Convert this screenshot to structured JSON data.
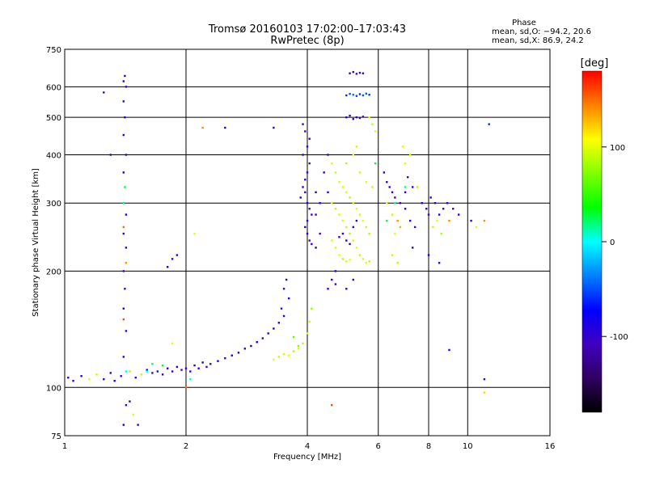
{
  "chart_data": {
    "type": "scatter",
    "title": "Tromsø 20160103 17:02:00–17:03:43",
    "subtitle": "RwPretec (8p)",
    "xlabel": "Frequency [MHz]",
    "ylabel": "Stationary phase Virtual Height [km]",
    "x_scale": "log",
    "y_scale": "log",
    "xlim": [
      1,
      16
    ],
    "ylim": [
      75,
      750
    ],
    "x_ticks": [
      1,
      2,
      4,
      6,
      8,
      10,
      16
    ],
    "y_ticks": [
      75,
      100,
      200,
      300,
      400,
      500,
      600,
      750
    ],
    "grid": true,
    "stats": {
      "heading": "Phase",
      "o_line": "mean, sd,O: −94.2, 20.6",
      "x_line": "mean, sd,X:  86.9, 24.2"
    },
    "colorbar": {
      "label": "[deg]",
      "range": [
        -180,
        180
      ],
      "ticks": [
        100,
        0,
        -100
      ],
      "colors": [
        "#ff0000",
        "#ff8000",
        "#ffff00",
        "#80ff00",
        "#00ff00",
        "#00ffff",
        "#0080ff",
        "#0000ff",
        "#4000c0",
        "#300060",
        "#000000"
      ]
    },
    "series": [
      {
        "points": [
          [
            1.02,
            106,
            -110
          ],
          [
            1.05,
            104,
            -105
          ],
          [
            1.1,
            107,
            -95
          ],
          [
            1.15,
            105,
            100
          ],
          [
            1.2,
            108,
            90
          ],
          [
            1.25,
            105,
            -100
          ],
          [
            1.3,
            109,
            -120
          ],
          [
            1.33,
            104,
            -90
          ],
          [
            1.38,
            107,
            -110
          ],
          [
            1.45,
            110,
            85
          ],
          [
            1.5,
            106,
            -100
          ],
          [
            1.55,
            108,
            90
          ],
          [
            1.6,
            111,
            -95
          ],
          [
            1.65,
            109,
            -110
          ],
          [
            1.7,
            110,
            -100
          ],
          [
            1.75,
            108,
            -120
          ],
          [
            1.8,
            112,
            -95
          ],
          [
            1.85,
            110,
            -105
          ],
          [
            1.9,
            113,
            -90
          ],
          [
            1.95,
            111,
            -110
          ],
          [
            2.0,
            112,
            -100
          ],
          [
            2.05,
            110,
            -115
          ],
          [
            2.1,
            114,
            -95
          ],
          [
            2.15,
            112,
            -100
          ],
          [
            2.2,
            116,
            -85
          ],
          [
            2.25,
            113,
            -105
          ],
          [
            2.3,
            115,
            -110
          ],
          [
            2.4,
            117,
            -90
          ],
          [
            2.5,
            119,
            -100
          ],
          [
            2.6,
            121,
            -80
          ],
          [
            2.7,
            123,
            -95
          ],
          [
            2.8,
            126,
            -105
          ],
          [
            2.9,
            128,
            -90
          ],
          [
            3.0,
            131,
            -85
          ],
          [
            3.1,
            134,
            -100
          ],
          [
            3.2,
            138,
            -95
          ],
          [
            3.3,
            142,
            -80
          ],
          [
            3.4,
            147,
            -90
          ],
          [
            3.5,
            153,
            -100
          ],
          [
            3.45,
            160,
            -105
          ],
          [
            3.5,
            180,
            -110
          ],
          [
            3.55,
            190,
            -105
          ],
          [
            3.6,
            170,
            -95
          ],
          [
            3.3,
            118,
            100
          ],
          [
            3.4,
            120,
            90
          ],
          [
            3.5,
            122,
            95
          ],
          [
            3.6,
            121,
            100
          ],
          [
            3.7,
            124,
            85
          ],
          [
            3.8,
            126,
            95
          ],
          [
            3.9,
            130,
            90
          ],
          [
            4.0,
            138,
            100
          ],
          [
            4.05,
            148,
            95
          ],
          [
            4.1,
            160,
            80
          ],
          [
            3.7,
            135,
            60
          ],
          [
            3.8,
            128,
            70
          ],
          [
            1.4,
            80,
            -90
          ],
          [
            1.42,
            90,
            -100
          ],
          [
            1.4,
            120,
            -95
          ],
          [
            1.42,
            140,
            -100
          ],
          [
            1.4,
            160,
            -90
          ],
          [
            1.41,
            180,
            -105
          ],
          [
            1.4,
            200,
            -110
          ],
          [
            1.42,
            230,
            -100
          ],
          [
            1.4,
            250,
            -95
          ],
          [
            1.42,
            280,
            -90
          ],
          [
            1.4,
            300,
            20
          ],
          [
            1.41,
            330,
            30
          ],
          [
            1.4,
            360,
            -80
          ],
          [
            1.42,
            400,
            -100
          ],
          [
            1.4,
            450,
            -95
          ],
          [
            1.41,
            500,
            -90
          ],
          [
            1.4,
            550,
            -100
          ],
          [
            1.42,
            600,
            -110
          ],
          [
            1.4,
            620,
            -95
          ],
          [
            1.41,
            640,
            -100
          ],
          [
            1.4,
            260,
            150
          ],
          [
            1.42,
            210,
            140
          ],
          [
            1.4,
            150,
            160
          ],
          [
            1.42,
            110,
            0
          ],
          [
            1.6,
            110,
            0
          ],
          [
            1.65,
            115,
            20
          ],
          [
            1.75,
            114,
            30
          ],
          [
            2.05,
            105,
            10
          ],
          [
            1.8,
            205,
            -90
          ],
          [
            1.9,
            220,
            -100
          ],
          [
            1.85,
            215,
            -95
          ],
          [
            2.1,
            250,
            100
          ],
          [
            1.3,
            400,
            -120
          ],
          [
            1.25,
            580,
            -110
          ],
          [
            2.2,
            470,
            140
          ],
          [
            2.5,
            470,
            -90
          ],
          [
            3.3,
            470,
            -100
          ],
          [
            3.9,
            330,
            -100
          ],
          [
            3.95,
            320,
            -110
          ],
          [
            3.85,
            310,
            -100
          ],
          [
            4.0,
            300,
            -95
          ],
          [
            4.05,
            290,
            -105
          ],
          [
            4.1,
            280,
            -110
          ],
          [
            4.0,
            270,
            -100
          ],
          [
            3.95,
            260,
            -90
          ],
          [
            4.0,
            250,
            -100
          ],
          [
            4.05,
            240,
            -110
          ],
          [
            4.1,
            235,
            -105
          ],
          [
            3.95,
            345,
            -100
          ],
          [
            4.0,
            360,
            -95
          ],
          [
            4.05,
            380,
            -110
          ],
          [
            3.9,
            400,
            -100
          ],
          [
            4.0,
            420,
            -95
          ],
          [
            4.05,
            440,
            -105
          ],
          [
            3.95,
            460,
            -110
          ],
          [
            3.9,
            480,
            -100
          ],
          [
            4.2,
            320,
            -95
          ],
          [
            4.3,
            300,
            -100
          ],
          [
            4.2,
            280,
            -105
          ],
          [
            4.3,
            250,
            -110
          ],
          [
            4.2,
            230,
            -95
          ],
          [
            4.5,
            320,
            -100
          ],
          [
            4.4,
            360,
            -105
          ],
          [
            4.5,
            400,
            -110
          ],
          [
            4.6,
            380,
            100
          ],
          [
            4.7,
            360,
            90
          ],
          [
            4.8,
            340,
            100
          ],
          [
            4.9,
            330,
            95
          ],
          [
            5.0,
            320,
            100
          ],
          [
            5.1,
            310,
            85
          ],
          [
            5.2,
            300,
            90
          ],
          [
            5.3,
            290,
            100
          ],
          [
            5.4,
            280,
            95
          ],
          [
            5.5,
            270,
            100
          ],
          [
            5.6,
            260,
            90
          ],
          [
            5.7,
            250,
            85
          ],
          [
            4.6,
            300,
            100
          ],
          [
            4.7,
            290,
            90
          ],
          [
            4.8,
            280,
            95
          ],
          [
            4.9,
            270,
            100
          ],
          [
            5.0,
            260,
            90
          ],
          [
            5.1,
            250,
            85
          ],
          [
            5.2,
            240,
            95
          ],
          [
            5.3,
            230,
            100
          ],
          [
            5.4,
            220,
            90
          ],
          [
            5.5,
            215,
            95
          ],
          [
            5.6,
            210,
            100
          ],
          [
            5.7,
            212,
            85
          ],
          [
            4.8,
            220,
            100
          ],
          [
            4.9,
            215,
            90
          ],
          [
            5.0,
            212,
            95
          ],
          [
            5.1,
            214,
            100
          ],
          [
            4.7,
            230,
            95
          ],
          [
            4.6,
            240,
            100
          ],
          [
            5.3,
            420,
            90
          ],
          [
            5.2,
            400,
            100
          ],
          [
            5.0,
            380,
            85
          ],
          [
            5.4,
            360,
            95
          ],
          [
            5.6,
            340,
            100
          ],
          [
            5.8,
            330,
            90
          ],
          [
            4.9,
            250,
            -100
          ],
          [
            5.0,
            240,
            -95
          ],
          [
            5.1,
            235,
            -110
          ],
          [
            4.8,
            245,
            -100
          ],
          [
            5.2,
            260,
            -90
          ],
          [
            5.3,
            270,
            -105
          ],
          [
            4.7,
            200,
            -100
          ],
          [
            4.6,
            190,
            -95
          ],
          [
            4.7,
            185,
            -110
          ],
          [
            4.5,
            180,
            -100
          ],
          [
            5.0,
            180,
            -95
          ],
          [
            5.2,
            190,
            -100
          ],
          [
            5.0,
            500,
            -90
          ],
          [
            5.1,
            505,
            -100
          ],
          [
            5.2,
            495,
            -95
          ],
          [
            5.3,
            500,
            -110
          ],
          [
            5.4,
            498,
            -100
          ],
          [
            5.5,
            502,
            -105
          ],
          [
            5.0,
            570,
            -60
          ],
          [
            5.1,
            575,
            -50
          ],
          [
            5.2,
            572,
            -40
          ],
          [
            5.3,
            568,
            -55
          ],
          [
            5.4,
            574,
            -60
          ],
          [
            5.5,
            570,
            -50
          ],
          [
            5.6,
            576,
            -45
          ],
          [
            5.7,
            572,
            -55
          ],
          [
            5.1,
            650,
            -100
          ],
          [
            5.2,
            655,
            -95
          ],
          [
            5.3,
            648,
            -110
          ],
          [
            5.4,
            652,
            -100
          ],
          [
            5.5,
            650,
            -105
          ],
          [
            5.7,
            500,
            100
          ],
          [
            5.8,
            480,
            90
          ],
          [
            5.9,
            460,
            100
          ],
          [
            6.2,
            360,
            -100
          ],
          [
            6.3,
            340,
            -95
          ],
          [
            6.4,
            330,
            -110
          ],
          [
            6.5,
            320,
            -100
          ],
          [
            6.6,
            310,
            -105
          ],
          [
            6.3,
            300,
            100
          ],
          [
            6.5,
            280,
            90
          ],
          [
            6.7,
            270,
            140
          ],
          [
            6.8,
            260,
            130
          ],
          [
            6.6,
            250,
            100
          ],
          [
            6.5,
            220,
            90
          ],
          [
            6.7,
            210,
            85
          ],
          [
            6.8,
            300,
            -100
          ],
          [
            7.0,
            320,
            -95
          ],
          [
            7.1,
            350,
            -110
          ],
          [
            7.3,
            330,
            -100
          ],
          [
            7.0,
            290,
            -90
          ],
          [
            7.2,
            270,
            -100
          ],
          [
            7.4,
            260,
            -105
          ],
          [
            7.3,
            230,
            -95
          ],
          [
            7.0,
            380,
            100
          ],
          [
            7.2,
            400,
            90
          ],
          [
            6.9,
            420,
            100
          ],
          [
            7.5,
            330,
            85
          ],
          [
            7.7,
            300,
            -100
          ],
          [
            7.9,
            290,
            -95
          ],
          [
            8.0,
            280,
            -110
          ],
          [
            8.1,
            310,
            -100
          ],
          [
            8.3,
            300,
            -105
          ],
          [
            8.5,
            280,
            -90
          ],
          [
            8.7,
            290,
            -100
          ],
          [
            8.9,
            300,
            -95
          ],
          [
            8.2,
            260,
            90
          ],
          [
            8.4,
            270,
            100
          ],
          [
            8.6,
            250,
            85
          ],
          [
            9.0,
            270,
            140
          ],
          [
            8.5,
            210,
            -100
          ],
          [
            8.0,
            220,
            -95
          ],
          [
            9.2,
            290,
            -110
          ],
          [
            9.5,
            280,
            -100
          ],
          [
            10.2,
            270,
            -95
          ],
          [
            10.5,
            260,
            100
          ],
          [
            11.0,
            270,
            140
          ],
          [
            11.3,
            480,
            -60
          ],
          [
            11.0,
            105,
            -100
          ],
          [
            11.0,
            97,
            120
          ],
          [
            9.0,
            125,
            -90
          ],
          [
            7.0,
            330,
            20
          ],
          [
            6.3,
            270,
            25
          ],
          [
            6.6,
            300,
            15
          ],
          [
            5.9,
            380,
            30
          ],
          [
            4.6,
            90,
            160
          ],
          [
            2.0,
            100,
            150
          ],
          [
            1.85,
            130,
            100
          ],
          [
            1.45,
            92,
            -100
          ],
          [
            1.48,
            85,
            100
          ],
          [
            1.52,
            80,
            -100
          ]
        ]
      }
    ]
  }
}
